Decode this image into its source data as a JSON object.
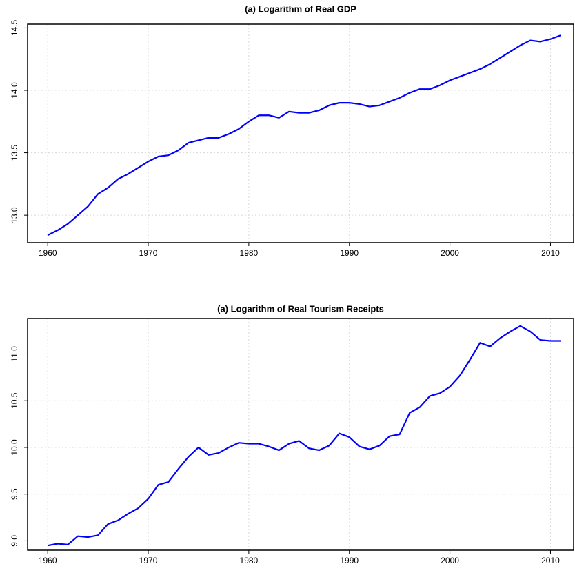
{
  "chart_data": [
    {
      "type": "line",
      "title": "(a) Logarithm of Real GDP",
      "x": [
        1960,
        1961,
        1962,
        1963,
        1964,
        1965,
        1966,
        1967,
        1968,
        1969,
        1970,
        1971,
        1972,
        1973,
        1974,
        1975,
        1976,
        1977,
        1978,
        1979,
        1980,
        1981,
        1982,
        1983,
        1984,
        1985,
        1986,
        1987,
        1988,
        1989,
        1990,
        1991,
        1992,
        1993,
        1994,
        1995,
        1996,
        1997,
        1998,
        1999,
        2000,
        2001,
        2002,
        2003,
        2004,
        2005,
        2006,
        2007,
        2008,
        2009,
        2010,
        2011
      ],
      "values": [
        12.84,
        12.88,
        12.93,
        13.0,
        13.07,
        13.17,
        13.22,
        13.29,
        13.33,
        13.38,
        13.43,
        13.47,
        13.48,
        13.52,
        13.58,
        13.6,
        13.62,
        13.62,
        13.65,
        13.69,
        13.75,
        13.8,
        13.8,
        13.78,
        13.83,
        13.82,
        13.82,
        13.84,
        13.88,
        13.9,
        13.9,
        13.89,
        13.87,
        13.88,
        13.91,
        13.94,
        13.98,
        14.01,
        14.01,
        14.04,
        14.08,
        14.11,
        14.14,
        14.17,
        14.21,
        14.26,
        14.31,
        14.36,
        14.4,
        14.39,
        14.41,
        14.44
      ],
      "color": "#0000ff",
      "xlim": [
        1958,
        2012.3
      ],
      "xticks": [
        1960,
        1970,
        1980,
        1990,
        2000,
        2010
      ],
      "ylim": [
        12.78,
        14.53
      ],
      "yticks": [
        {
          "value": 13,
          "label": "13.0"
        },
        13.5,
        {
          "value": 14,
          "label": "14.0"
        },
        14.5
      ],
      "grid": true
    },
    {
      "type": "line",
      "title": "(a) Logarithm of Real Tourism Receipts",
      "x": [
        1960,
        1961,
        1962,
        1963,
        1964,
        1965,
        1966,
        1967,
        1968,
        1969,
        1970,
        1971,
        1972,
        1973,
        1974,
        1975,
        1976,
        1977,
        1978,
        1979,
        1980,
        1981,
        1982,
        1983,
        1984,
        1985,
        1986,
        1987,
        1988,
        1989,
        1990,
        1991,
        1992,
        1993,
        1994,
        1995,
        1996,
        1997,
        1998,
        1999,
        2000,
        2001,
        2002,
        2003,
        2004,
        2005,
        2006,
        2007,
        2008,
        2009,
        2010,
        2011
      ],
      "values": [
        8.95,
        8.97,
        8.96,
        9.05,
        9.04,
        9.06,
        9.18,
        9.22,
        9.29,
        9.35,
        9.45,
        9.6,
        9.63,
        9.77,
        9.9,
        10.0,
        9.92,
        9.94,
        10.0,
        10.05,
        10.04,
        10.04,
        10.01,
        9.97,
        10.04,
        10.07,
        9.99,
        9.97,
        10.02,
        10.15,
        10.11,
        10.01,
        9.98,
        10.02,
        10.12,
        10.14,
        10.37,
        10.43,
        10.55,
        10.58,
        10.65,
        10.77,
        10.94,
        11.12,
        11.08,
        11.17,
        11.24,
        11.3,
        11.24,
        11.15,
        11.14,
        11.14
      ],
      "color": "#0000ff",
      "xlim": [
        1958,
        2012.3
      ],
      "xticks": [
        1960,
        1970,
        1980,
        1990,
        2000,
        2010
      ],
      "ylim": [
        8.9,
        11.38
      ],
      "yticks": [
        {
          "value": 9,
          "label": "9.0"
        },
        9.5,
        {
          "value": 10,
          "label": "10.0"
        },
        10.5,
        {
          "value": 11,
          "label": "11.0"
        }
      ],
      "grid": true
    }
  ]
}
